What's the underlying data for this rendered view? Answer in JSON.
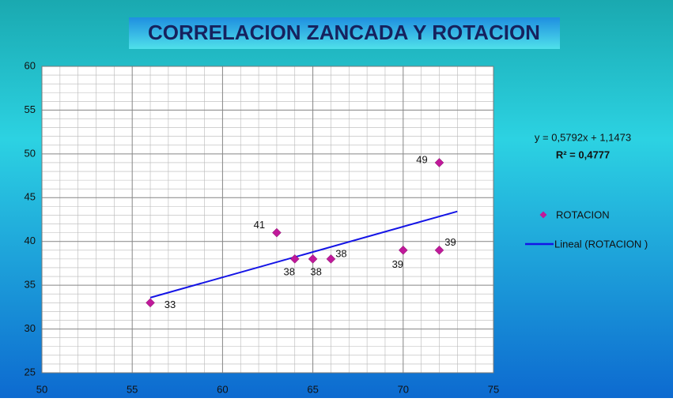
{
  "chart_data": {
    "type": "scatter",
    "title": "CORRELACION  ZANCADA  Y ROTACION",
    "series": [
      {
        "name": "ROTACION",
        "color": "#c0199a",
        "x": [
          56,
          63,
          64,
          65,
          66,
          70,
          72,
          72
        ],
        "values": [
          33,
          41,
          38,
          38,
          38,
          39,
          49,
          39
        ]
      }
    ],
    "trendline": {
      "name": "Lineal (ROTACION )",
      "color": "#1414e6",
      "slope": 0.5792,
      "intercept": 1.1473,
      "x_range": [
        56,
        73
      ],
      "equation": "y = 0,5792x + 1,1473",
      "r2": "R² = 0,4777"
    },
    "xlim": [
      50,
      75
    ],
    "xticks": [
      50,
      55,
      60,
      65,
      70,
      75
    ],
    "ylim": [
      25,
      60
    ],
    "yticks": [
      25,
      30,
      35,
      40,
      45,
      50,
      55,
      60
    ],
    "grid": true,
    "minor_grid_step": 1,
    "legend": "right"
  }
}
